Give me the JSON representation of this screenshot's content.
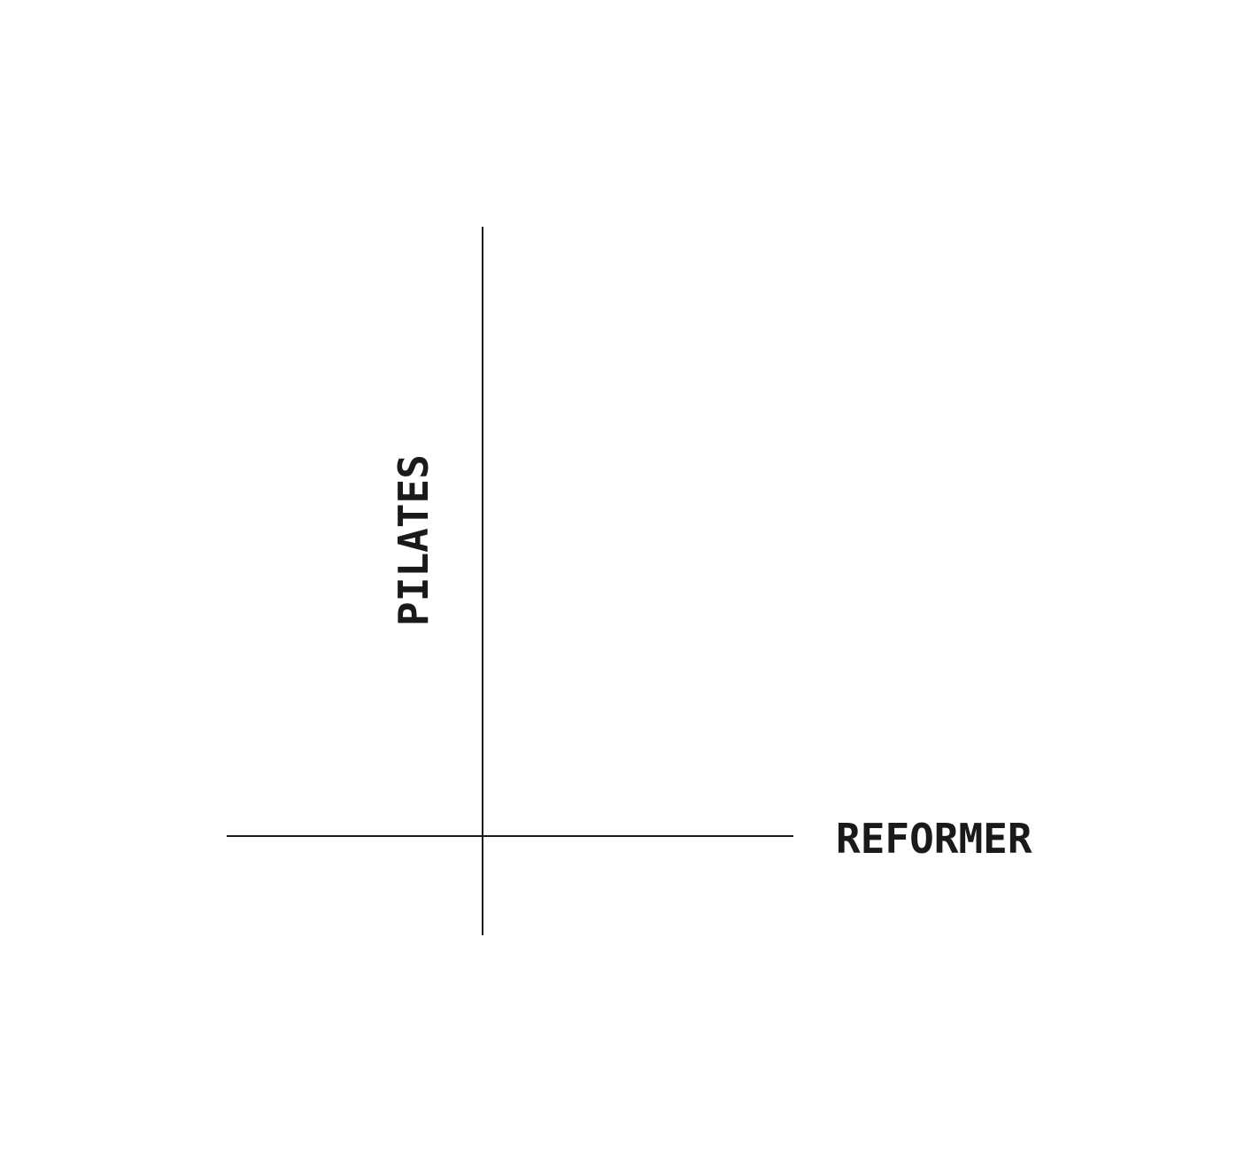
{
  "labels": {
    "horizontal": "REFORMER",
    "vertical": "PILATES"
  },
  "colors": {
    "background": "#ffffff",
    "ink": "#1a1a1a"
  }
}
